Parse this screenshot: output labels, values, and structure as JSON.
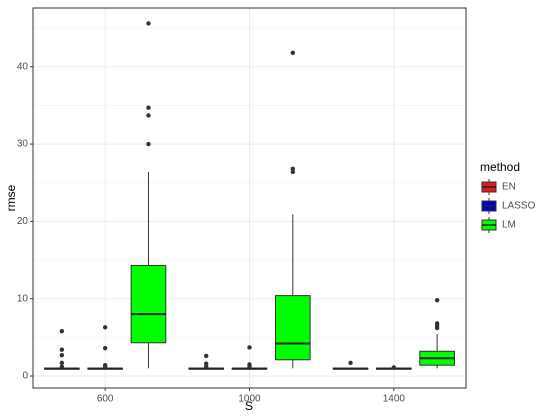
{
  "chart_data": {
    "type": "box",
    "x_label": "S",
    "y_label": "rmse",
    "legend_title": "method",
    "categories": [
      "600",
      "1000",
      "1400"
    ],
    "ylim": [
      -1.55,
      47.6
    ],
    "yticks": [
      0,
      10,
      20,
      30,
      40
    ],
    "yminorticks": [
      5,
      15,
      25,
      35,
      45
    ],
    "grid": true,
    "series": [
      {
        "name": "EN",
        "color": "#e31a1c",
        "stats": [
          {
            "whislo": 0.8,
            "q1": 0.88,
            "med": 0.95,
            "q3": 1.02,
            "whishi": 1.1,
            "fliers": [
              5.8,
              3.4,
              2.7,
              1.7,
              1.2
            ]
          },
          {
            "whislo": 0.8,
            "q1": 0.88,
            "med": 0.95,
            "q3": 1.02,
            "whishi": 1.1,
            "fliers": [
              2.6,
              1.6,
              1.2
            ]
          },
          {
            "whislo": 0.8,
            "q1": 0.88,
            "med": 0.95,
            "q3": 1.02,
            "whishi": 1.1,
            "fliers": [
              1.7
            ]
          }
        ]
      },
      {
        "name": "LASSO",
        "color": "#0000cc",
        "stats": [
          {
            "whislo": 0.8,
            "q1": 0.88,
            "med": 0.95,
            "q3": 1.02,
            "whishi": 1.1,
            "fliers": [
              6.3,
              3.6,
              1.4,
              1.2
            ]
          },
          {
            "whislo": 0.8,
            "q1": 0.88,
            "med": 0.95,
            "q3": 1.02,
            "whishi": 1.1,
            "fliers": [
              3.7,
              1.5,
              1.2
            ]
          },
          {
            "whislo": 0.8,
            "q1": 0.88,
            "med": 0.95,
            "q3": 1.02,
            "whishi": 1.05,
            "fliers": [
              1.1
            ]
          }
        ]
      },
      {
        "name": "LM",
        "color": "#00ff00",
        "stats": [
          {
            "whislo": 1.0,
            "q1": 4.3,
            "med": 8.0,
            "q3": 14.3,
            "whishi": 26.4,
            "fliers": [
              30.0,
              33.7,
              34.7,
              45.6
            ]
          },
          {
            "whislo": 1.0,
            "q1": 2.1,
            "med": 4.2,
            "q3": 10.4,
            "whishi": 20.9,
            "fliers": [
              26.4,
              26.8,
              41.8
            ]
          },
          {
            "whislo": 1.0,
            "q1": 1.4,
            "med": 2.3,
            "q3": 3.2,
            "whishi": 5.4,
            "fliers": [
              6.2,
              6.5,
              6.8,
              9.8
            ]
          }
        ]
      }
    ]
  }
}
